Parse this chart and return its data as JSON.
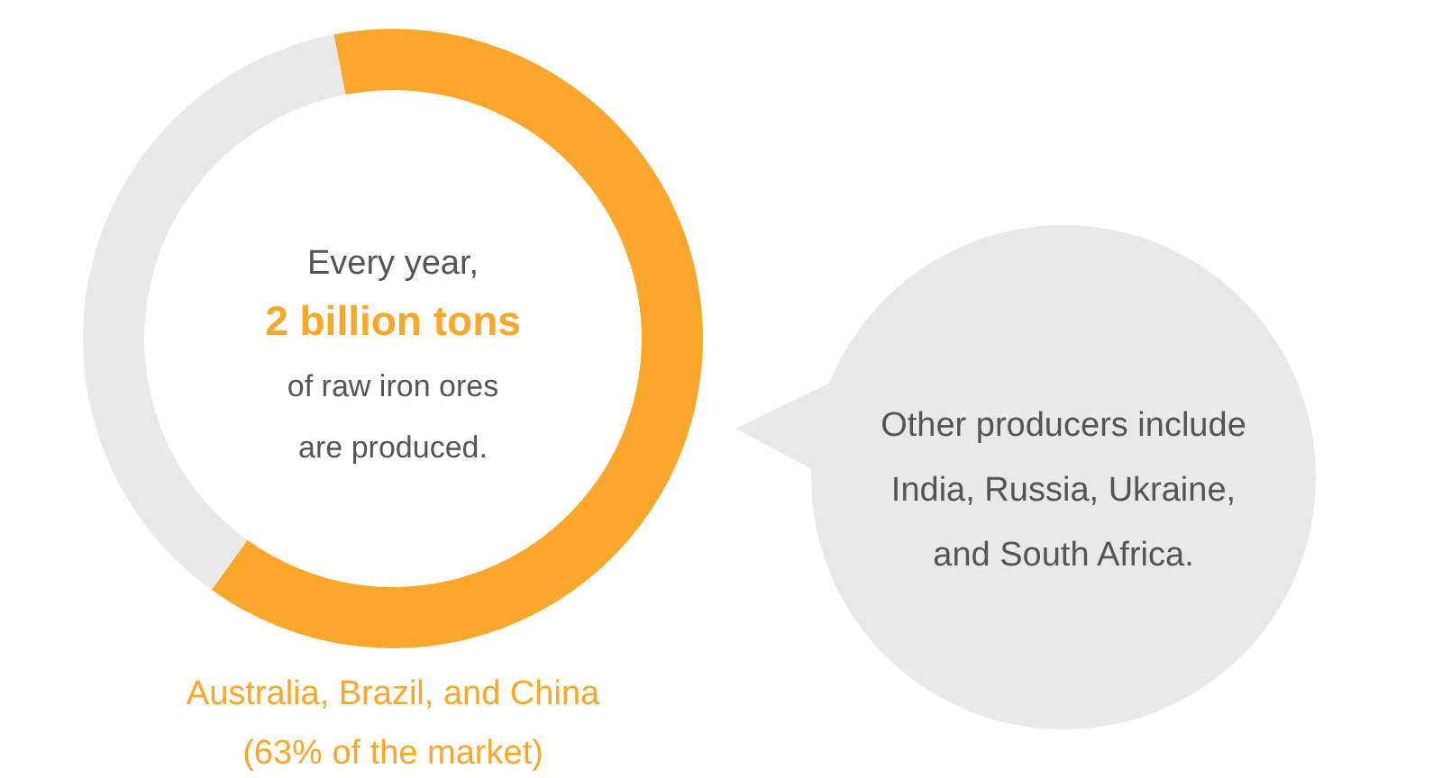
{
  "chart_data": {
    "type": "donut",
    "categories": [
      "Australia, Brazil, and China",
      null
    ],
    "values": [
      63,
      37
    ],
    "colors": [
      "#faa72b",
      "#e9e9ea"
    ],
    "annotations": [
      "Every year,",
      "2 billion tons",
      "of raw iron ores",
      "are produced.",
      "(63% of the market)",
      "Other producers include",
      "India, Russia, Ukraine,",
      "and South Africa."
    ],
    "legend": false
  }
}
